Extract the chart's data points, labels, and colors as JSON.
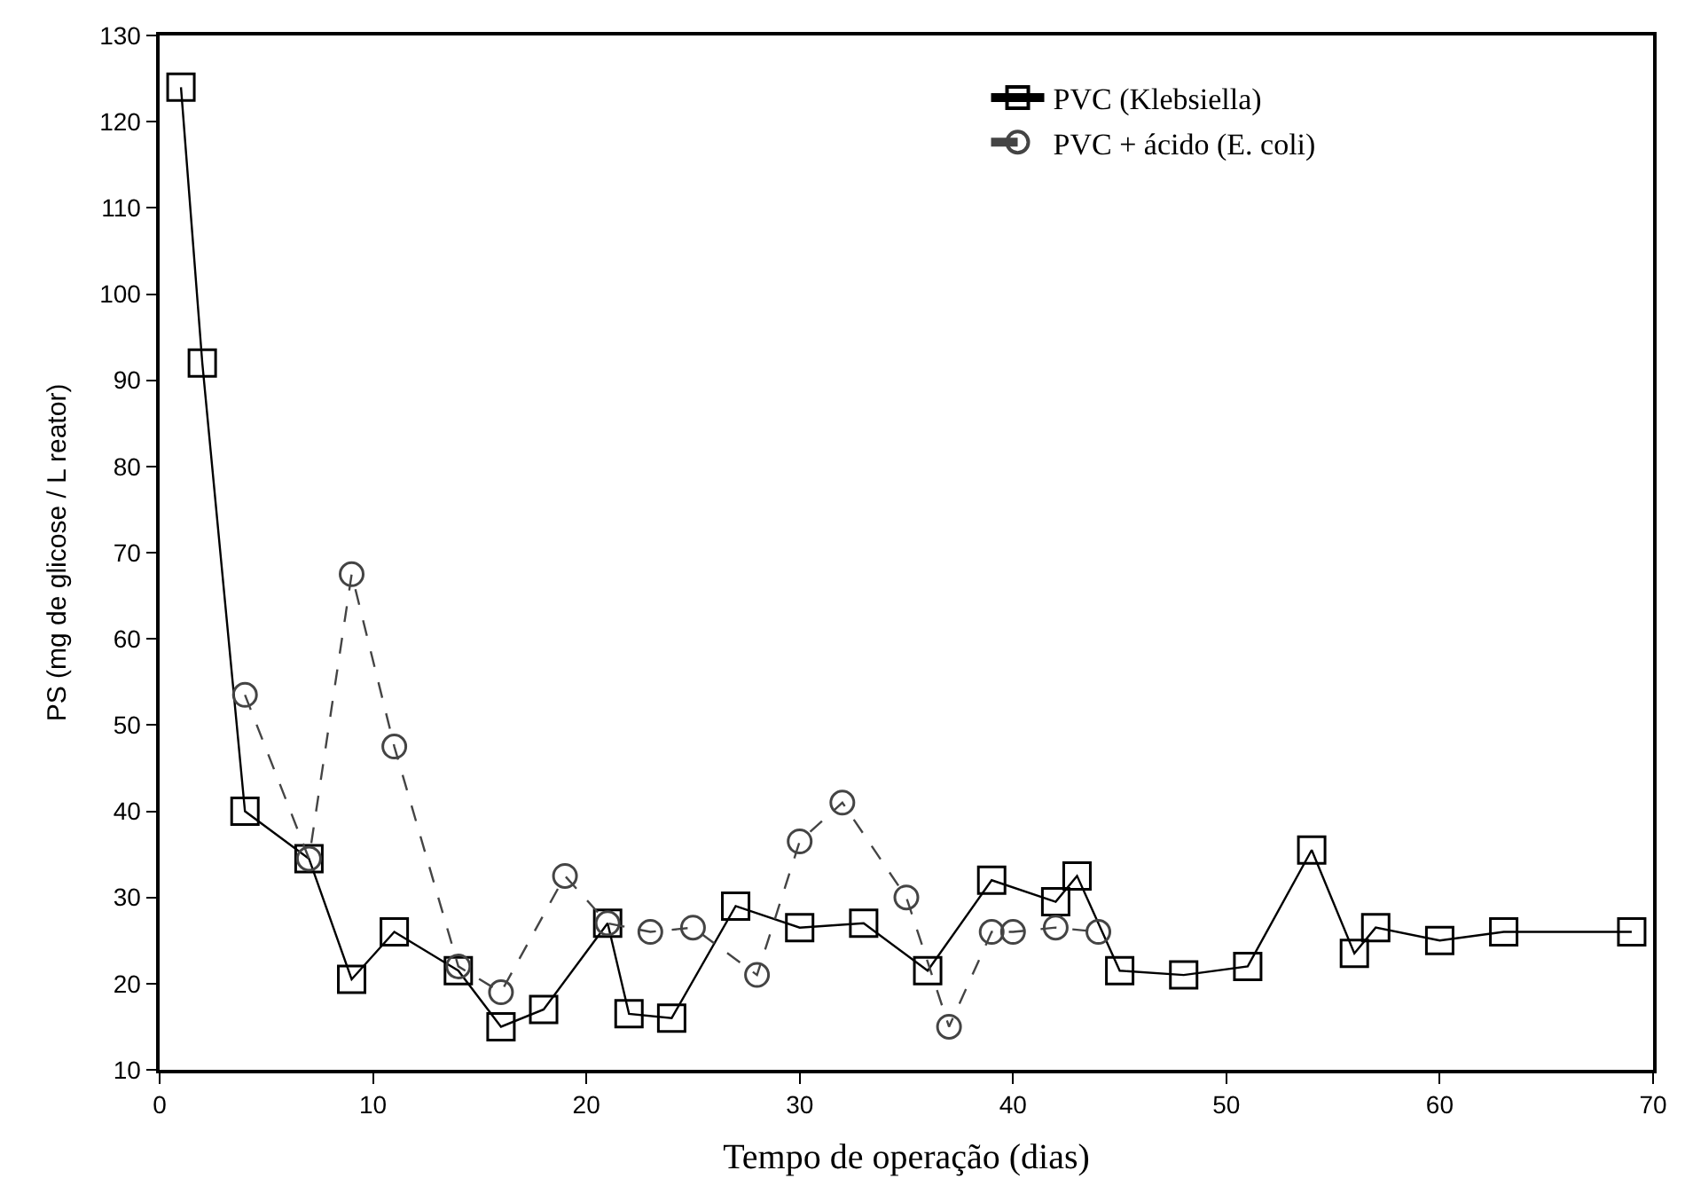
{
  "chart_data": {
    "type": "line",
    "xlabel": "Tempo de operação (dias)",
    "ylabel": "PS (mg de glicose / L reator)",
    "xlim": [
      0,
      70
    ],
    "xticks": [
      0,
      10,
      20,
      30,
      40,
      50,
      60,
      70
    ],
    "ylim": [
      10,
      130
    ],
    "yticks": [
      10,
      20,
      30,
      40,
      50,
      60,
      70,
      80,
      90,
      100,
      110,
      120,
      130
    ],
    "legend": "top right",
    "series": [
      {
        "name": "PVC (Klebsiella)",
        "color": "#000000",
        "marker": "square",
        "line_style": "solid",
        "x": [
          1,
          2,
          4,
          7,
          9,
          11,
          14,
          16,
          18,
          21,
          22,
          24,
          27,
          30,
          33,
          36,
          39,
          42,
          43,
          45,
          48,
          51,
          54,
          56,
          57,
          60,
          63,
          69
        ],
        "values": [
          124,
          92,
          40,
          34.5,
          20.5,
          26,
          21.5,
          15,
          17,
          27,
          16.5,
          16,
          29,
          26.5,
          27,
          21.5,
          32,
          29.5,
          32.5,
          21.5,
          21,
          22,
          35.5,
          23.5,
          26.5,
          25,
          26,
          26
        ]
      },
      {
        "name": "PVC + ácido (E. coli)",
        "color": "#444444",
        "marker": "circle",
        "line_style": "dashed",
        "x": [
          4,
          7,
          9,
          11,
          14,
          16,
          19,
          21,
          23,
          25,
          28,
          30,
          32,
          35,
          37,
          39,
          40,
          42,
          44
        ],
        "values": [
          53.5,
          34.5,
          67.5,
          47.5,
          22,
          19,
          32.5,
          27,
          26,
          26.5,
          21,
          36.5,
          41,
          30,
          15,
          26,
          26,
          26.5,
          26
        ]
      }
    ]
  }
}
